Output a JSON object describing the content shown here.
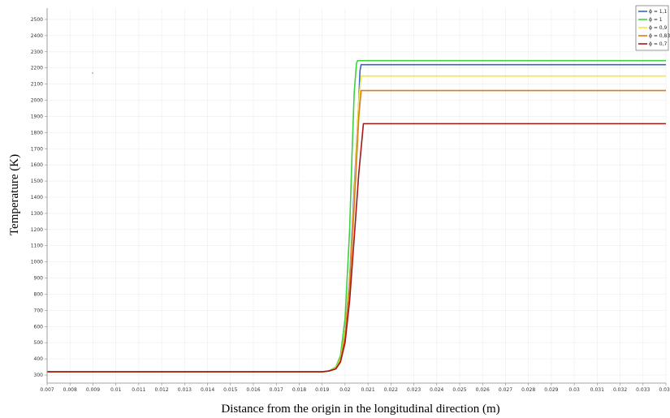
{
  "chart_data": {
    "type": "line",
    "title": "",
    "xlabel": "Distance from the origin in the longitudinal direction (m)",
    "ylabel": "Temperature (K)",
    "xlim": [
      0.007,
      0.034
    ],
    "ylim": [
      250,
      2570
    ],
    "grid": true,
    "legend_position": "top-right",
    "x_ticks": [
      0.007,
      0.008,
      0.009,
      0.01,
      0.011,
      0.012,
      0.013,
      0.014,
      0.015,
      0.016,
      0.017,
      0.018,
      0.019,
      0.02,
      0.021,
      0.022,
      0.023,
      0.024,
      0.025,
      0.026,
      0.027,
      0.028,
      0.029,
      0.03,
      0.031,
      0.032,
      0.033,
      0.034
    ],
    "x_tick_labels": [
      "0.007",
      "0.008",
      "0.009",
      "0.01",
      "0.011",
      "0.012",
      "0.013",
      "0.014",
      "0.015",
      "0.016",
      "0.017",
      "0.018",
      "0.019",
      "0.02",
      "0.021",
      "0.022",
      "0.023",
      "0.024",
      "0.025",
      "0.026",
      "0.027",
      "0.028",
      "0.029",
      "0.03",
      "0.031",
      "0.032",
      "0.033",
      "0.034"
    ],
    "y_ticks": [
      300,
      400,
      500,
      600,
      700,
      800,
      900,
      1000,
      1100,
      1200,
      1300,
      1400,
      1500,
      1600,
      1700,
      1800,
      1900,
      2000,
      2100,
      2200,
      2300,
      2400,
      2500
    ],
    "y_tick_labels": [
      "300",
      "400",
      "500",
      "600",
      "700",
      "800",
      "900",
      "1000",
      "1100",
      "1200",
      "1300",
      "1400",
      "1500",
      "1600",
      "1700",
      "1800",
      "1900",
      "2000",
      "2100",
      "2200",
      "2300",
      "2400",
      "2500"
    ],
    "series": [
      {
        "name": "ϕ = 1,1",
        "color": "#3a62c8",
        "x": [
          0.007,
          0.019,
          0.0193,
          0.0196,
          0.0198,
          0.02,
          0.0202,
          0.0204,
          0.0206,
          0.02065,
          0.0207,
          0.034
        ],
        "y": [
          320,
          320,
          325,
          345,
          400,
          560,
          900,
          1450,
          2000,
          2180,
          2220,
          2220
        ]
      },
      {
        "name": "ϕ = 1",
        "color": "#3ed13e",
        "x": [
          0.007,
          0.019,
          0.0193,
          0.0196,
          0.0198,
          0.02,
          0.0202,
          0.0203,
          0.0204,
          0.0205,
          0.02055,
          0.034
        ],
        "y": [
          320,
          320,
          325,
          350,
          420,
          650,
          1200,
          1650,
          2050,
          2230,
          2245,
          2245
        ]
      },
      {
        "name": "ϕ = 0,9",
        "color": "#f2ea3a",
        "x": [
          0.007,
          0.019,
          0.0193,
          0.0196,
          0.0198,
          0.02,
          0.0202,
          0.0204,
          0.0206,
          0.0207,
          0.034
        ],
        "y": [
          320,
          320,
          325,
          345,
          400,
          560,
          880,
          1400,
          2000,
          2150,
          2150
        ]
      },
      {
        "name": "ϕ = 0,83",
        "color": "#e07a1e",
        "x": [
          0.007,
          0.019,
          0.0193,
          0.0196,
          0.0198,
          0.02,
          0.0202,
          0.0204,
          0.0206,
          0.0207,
          0.034
        ],
        "y": [
          320,
          320,
          325,
          340,
          390,
          540,
          850,
          1350,
          1900,
          2060,
          2060
        ]
      },
      {
        "name": "ϕ = 0,7",
        "color": "#a31818",
        "x": [
          0.007,
          0.019,
          0.0193,
          0.0196,
          0.0198,
          0.02,
          0.0202,
          0.0204,
          0.0206,
          0.0207,
          0.0208,
          0.034
        ],
        "y": [
          320,
          320,
          325,
          338,
          380,
          500,
          760,
          1150,
          1550,
          1700,
          1855,
          1855
        ]
      }
    ]
  }
}
